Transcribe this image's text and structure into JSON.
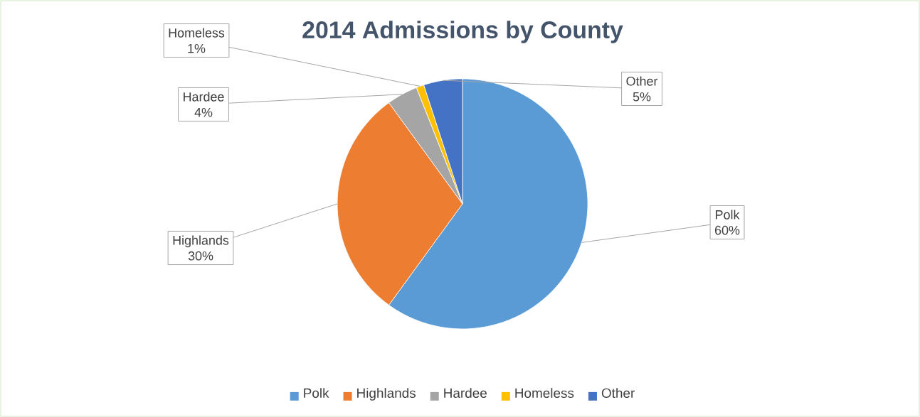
{
  "chart_data": {
    "type": "pie",
    "title": "2014 Admissions  by County",
    "categories": [
      "Polk",
      "Highlands",
      "Hardee",
      "Homeless",
      "Other"
    ],
    "values": [
      60,
      30,
      4,
      1,
      5
    ],
    "value_labels": [
      "60%",
      "30%",
      "4%",
      "1%",
      "5%"
    ],
    "colors": [
      "#5b9bd5",
      "#ed7d31",
      "#a5a5a5",
      "#ffc000",
      "#4472c4"
    ],
    "legend": "bottom"
  }
}
